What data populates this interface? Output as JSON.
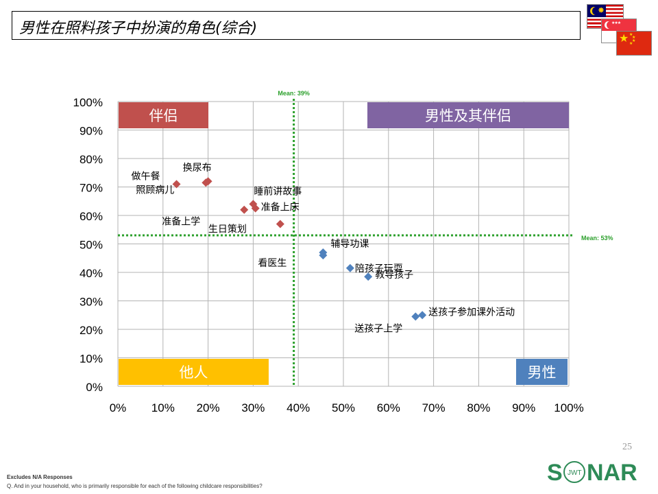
{
  "page_title": "男性在照料孩子中扮演的角色(综合)",
  "page_number": "25",
  "footnote_1": "Excludes N/A Responses",
  "footnote_2": "Q. And in your household, who is primarily responsible for each of the following childcare responsibilities?",
  "logo": {
    "brand": "SONAR",
    "sub": "JWT",
    "color": "#2e8b57"
  },
  "flags": [
    "malaysia-flag",
    "singapore-flag",
    "china-flag"
  ],
  "chart_data": {
    "type": "scatter",
    "title": "",
    "xlabel": "",
    "ylabel": "",
    "xlim": [
      0,
      100
    ],
    "ylim": [
      0,
      100
    ],
    "x_ticks": [
      "0%",
      "10%",
      "20%",
      "30%",
      "40%",
      "50%",
      "60%",
      "70%",
      "80%",
      "90%",
      "100%"
    ],
    "y_ticks": [
      "0%",
      "10%",
      "20%",
      "30%",
      "40%",
      "50%",
      "60%",
      "70%",
      "80%",
      "90%",
      "100%"
    ],
    "grid": true,
    "mean_lines": [
      {
        "axis": "x",
        "value": 39,
        "label": "Mean: 39%",
        "color": "#2ca02c"
      },
      {
        "axis": "y",
        "value": 53,
        "label": "Mean: 53%",
        "color": "#2ca02c"
      }
    ],
    "quadrant_labels": [
      {
        "text": "伴侣",
        "color": "#c0504d",
        "corner": "top-left"
      },
      {
        "text": "男性及其伴侣",
        "color": "#8064a2",
        "corner": "top-right"
      },
      {
        "text": "他人",
        "color": "#ffc000",
        "corner": "bottom-left"
      },
      {
        "text": "男性",
        "color": "#4f81bd",
        "corner": "bottom-right"
      }
    ],
    "series": [
      {
        "color": "#c0504d",
        "points": [
          {
            "label": "做午餐",
            "x": 13,
            "y": 71
          },
          {
            "label": "换尿布",
            "x": 20,
            "y": 72
          },
          {
            "label": "照顾病儿",
            "x": 19.5,
            "y": 71.5
          },
          {
            "label": "睡前讲故事",
            "x": 30,
            "y": 64
          },
          {
            "label": "准备上床",
            "x": 30.5,
            "y": 62.5
          },
          {
            "label": "准备上学",
            "x": 28,
            "y": 62
          },
          {
            "label": "生日策划",
            "x": 36,
            "y": 57
          }
        ]
      },
      {
        "color": "#4f81bd",
        "points": [
          {
            "label": "辅导功课",
            "x": 45.5,
            "y": 47
          },
          {
            "label": "看医生",
            "x": 45.5,
            "y": 46
          },
          {
            "label": "陪孩子玩耍",
            "x": 51.5,
            "y": 41.5
          },
          {
            "label": "教导孩子",
            "x": 55.5,
            "y": 38.5
          },
          {
            "label": "送孩子参加课外活动",
            "x": 67.5,
            "y": 25
          },
          {
            "label": "送孩子上学",
            "x": 66,
            "y": 24.5
          }
        ]
      }
    ]
  }
}
